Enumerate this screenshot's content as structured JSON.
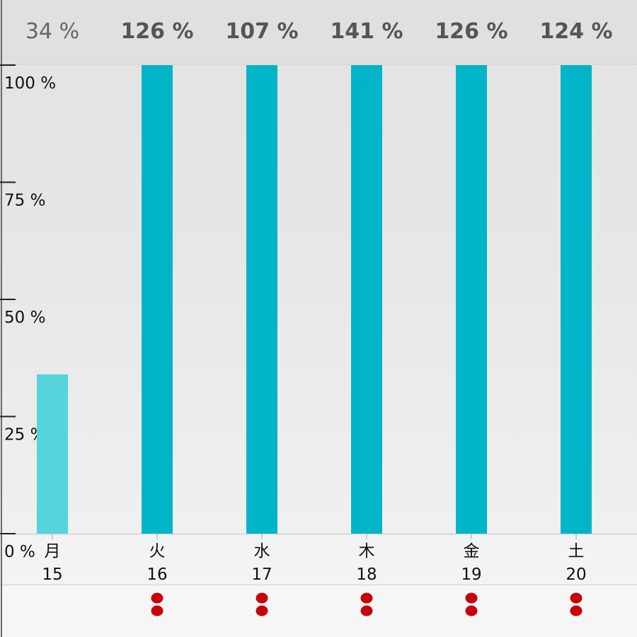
{
  "chart_data": {
    "type": "bar",
    "categories": [
      "月 15",
      "火 16",
      "水 17",
      "木 18",
      "金 19",
      "土 20"
    ],
    "days": [
      "月",
      "火",
      "水",
      "木",
      "金",
      "土"
    ],
    "dates": [
      "15",
      "16",
      "17",
      "18",
      "19",
      "20"
    ],
    "values": [
      34,
      126,
      107,
      141,
      126,
      124
    ],
    "value_labels": [
      "34 %",
      "126 %",
      "107 %",
      "141 %",
      "126 %",
      "124 %"
    ],
    "ylim": [
      0,
      100
    ],
    "yticks": [
      0,
      25,
      50,
      75,
      100
    ],
    "ytick_labels": [
      "0 %",
      "25 %",
      "50 %",
      "75 %",
      "100 %"
    ],
    "markers": [
      0,
      1,
      1,
      1,
      1,
      1
    ],
    "title": "",
    "xlabel": "",
    "ylabel": ""
  },
  "colors": {
    "bar": "#00b5c8",
    "bar_current": "#55d4dc",
    "marker": "#c8000a",
    "value_text": "#555555"
  }
}
